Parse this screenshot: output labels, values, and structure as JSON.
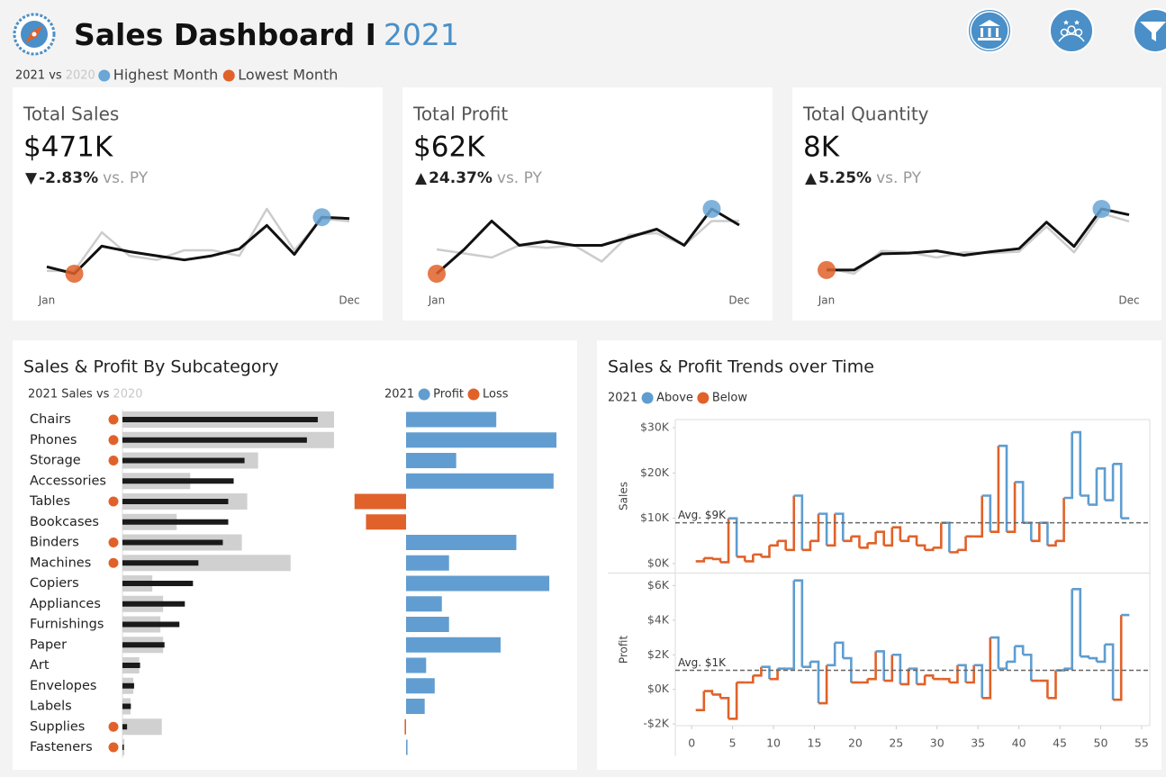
{
  "header": {
    "title": "Sales Dashboard I",
    "year": "2021",
    "legend": [
      {
        "label": "2021 vs"
      },
      {
        "label": "2020"
      },
      {
        "label": "Highest Month",
        "color": "#6aa6d6"
      },
      {
        "label": "Lowest Month",
        "color": "#e0622a"
      }
    ]
  },
  "kpis": [
    {
      "label": "Total Sales",
      "value": "$471K",
      "arrow": "▼",
      "change": "-2.83%",
      "suffix": "vs. PY"
    },
    {
      "label": "Total Profit",
      "value": "$62K",
      "arrow": "▲",
      "change": "24.37%",
      "suffix": "vs. PY"
    },
    {
      "label": "Total Quantity",
      "value": "8K",
      "arrow": "▲",
      "change": "5.25%",
      "suffix": "vs. PY"
    }
  ],
  "chart_data": [
    {
      "type": "line",
      "categories": [
        "Jan",
        null,
        null,
        null,
        null,
        null,
        null,
        null,
        null,
        null,
        null,
        "Dec"
      ],
      "series": [
        {
          "color": "#111111",
          "values": [
            25,
            20,
            40,
            36,
            33,
            30,
            33,
            38,
            55,
            34,
            61,
            60
          ]
        },
        {
          "color": "#cccccc",
          "values": [
            22,
            22,
            50,
            33,
            30,
            37,
            37,
            33,
            67,
            37,
            60,
            58
          ]
        }
      ]
    },
    {
      "type": "line",
      "categories": [
        "Jan",
        null,
        null,
        null,
        null,
        null,
        null,
        null,
        null,
        null,
        null,
        "Dec"
      ],
      "series": [
        {
          "color": "#111111",
          "values": [
            1,
            4,
            7.5,
            4.5,
            5,
            4.5,
            4.5,
            5.5,
            6.5,
            4.5,
            9,
            7
          ]
        },
        {
          "color": "#cccccc",
          "values": [
            4,
            3.5,
            3,
            4.5,
            4.2,
            4.5,
            2.5,
            5.8,
            6,
            4.5,
            7.5,
            7.5
          ]
        }
      ]
    },
    {
      "type": "line",
      "categories": [
        "Jan",
        null,
        null,
        null,
        null,
        null,
        null,
        null,
        null,
        null,
        null,
        "Dec"
      ],
      "series": [
        {
          "color": "#111111",
          "values": [
            400,
            400,
            620,
            630,
            660,
            600,
            650,
            690,
            1050,
            720,
            1230,
            1150
          ]
        },
        {
          "color": "#cccccc",
          "values": [
            430,
            350,
            660,
            640,
            570,
            640,
            630,
            650,
            990,
            640,
            1170,
            1060
          ]
        }
      ]
    },
    {
      "type": "subcategory",
      "title": "Sales & Profit By Subcategory",
      "categories": [
        "Chairs",
        "Phones",
        "Storage",
        "Accessories",
        "Tables",
        "Bookcases",
        "Binders",
        "Machines",
        "Copiers",
        "Appliances",
        "Furnishings",
        "Paper",
        "Art",
        "Envelopes",
        "Labels",
        "Supplies",
        "Fasteners"
      ],
      "series": [
        {
          "name": "2021 Sales vs",
          "color": "#1a1a1a",
          "values": [
            72,
            68,
            45,
            41,
            39,
            39,
            37,
            28,
            26,
            23,
            21,
            15.5,
            6.5,
            4.3,
            3.1,
            1.7,
            0.5
          ]
        },
        {
          "name": "2020",
          "color": "#d0d0d0",
          "values": [
            78,
            78,
            50,
            25,
            46,
            20,
            44,
            62,
            11,
            15,
            14,
            15,
            6.2,
            4,
            3,
            14.5,
            0.7
          ]
        }
      ],
      "decline_color": "#e0622a",
      "profit": {
        "legend_title": "2021",
        "values": [
          6.3,
          10.5,
          3.5,
          10.3,
          -3.6,
          -2.8,
          7.7,
          3,
          10,
          2.5,
          3,
          6.6,
          1.4,
          2,
          1.3,
          -0.1,
          0.1
        ],
        "legend": [
          {
            "name": "Profit",
            "color": "#619dd1"
          },
          {
            "name": "Loss",
            "color": "#e0622a"
          }
        ]
      }
    },
    {
      "type": "step",
      "title": "Sales & Profit Trends over Time",
      "legend_title": "2021",
      "legend": [
        {
          "name": "Above",
          "color": "#5f9dd0"
        },
        {
          "name": "Below",
          "color": "#e0622a"
        }
      ],
      "x": [
        1,
        2,
        3,
        4,
        5,
        6,
        7,
        8,
        9,
        10,
        11,
        12,
        13,
        14,
        15,
        16,
        17,
        18,
        19,
        20,
        21,
        22,
        23,
        24,
        25,
        26,
        27,
        28,
        29,
        30,
        31,
        32,
        33,
        34,
        35,
        36,
        37,
        38,
        39,
        40,
        41,
        42,
        43,
        44,
        45,
        46,
        47,
        48,
        49,
        50,
        51,
        52,
        53
      ],
      "xlim": [
        -2,
        56
      ],
      "xticks": [
        0,
        5,
        10,
        15,
        20,
        25,
        30,
        35,
        40,
        45,
        50,
        55
      ],
      "panels": [
        {
          "ylabel": "Sales",
          "ylim": [
            -2,
            31.8
          ],
          "yticks": [
            {
              "value": 0,
              "label": "$0K"
            },
            {
              "value": 10,
              "label": "$10K"
            },
            {
              "value": 20,
              "label": "$20K"
            },
            {
              "value": 30,
              "label": "$30K"
            }
          ],
          "avg": 9,
          "avg_label": "Avg. $9K",
          "values": [
            0.5,
            1.2,
            1.0,
            0.3,
            10,
            1.5,
            0.5,
            2,
            1.5,
            4,
            5,
            3,
            15,
            3,
            5,
            11,
            4,
            11,
            5,
            6,
            3.5,
            4.5,
            7,
            4,
            8,
            5,
            6,
            4,
            3,
            3.5,
            9,
            2.5,
            3,
            6,
            6,
            15,
            7,
            26,
            7,
            18,
            9,
            5,
            9,
            4,
            5,
            14.5,
            29,
            15,
            13,
            21,
            14,
            22,
            10
          ]
        },
        {
          "ylabel": "Profit",
          "ylim": [
            -2.1,
            6.7
          ],
          "yticks": [
            {
              "value": -2,
              "label": "-$2K"
            },
            {
              "value": 0,
              "label": "$0K"
            },
            {
              "value": 2,
              "label": "$2K"
            },
            {
              "value": 4,
              "label": "$4K"
            },
            {
              "value": 6,
              "label": "$6K"
            }
          ],
          "avg": 1.1,
          "avg_label": "Avg. $1K",
          "values": [
            -1.2,
            -0.1,
            -0.3,
            -0.5,
            -1.7,
            0.4,
            0.4,
            0.8,
            1.3,
            0.6,
            1.2,
            1.2,
            6.3,
            1.3,
            1.6,
            -0.8,
            1.4,
            2.7,
            1.8,
            0.4,
            0.4,
            0.6,
            2.2,
            0.5,
            2.0,
            0.3,
            1.2,
            0.3,
            0.8,
            0.6,
            0.6,
            0.4,
            1.4,
            0.4,
            1.4,
            -0.5,
            3.0,
            1.2,
            1.6,
            2.5,
            2.0,
            0.5,
            0.5,
            -0.5,
            1.1,
            1.2,
            5.8,
            1.9,
            1.8,
            1.6,
            2.6,
            -0.6,
            4.3
          ]
        }
      ]
    }
  ]
}
